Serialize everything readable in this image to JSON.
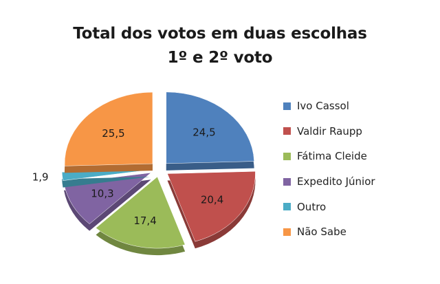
{
  "title": {
    "line1": "Total dos votos em duas escolhas",
    "line2": "1º e 2º voto"
  },
  "chart_data": {
    "type": "pie",
    "title": "Total dos votos em duas escolhas 1º e 2º voto",
    "categories": [
      "Ivo Cassol",
      "Valdir Raupp",
      "Fátima Cleide",
      "Expedito Júnior",
      "Outro",
      "Não Sabe"
    ],
    "values": [
      24.5,
      20.4,
      17.4,
      10.3,
      1.9,
      25.5
    ],
    "data_labels": [
      "24,5",
      "20,4",
      "17,4",
      "10,3",
      "1,9",
      "25,5"
    ],
    "colors": [
      "#4F81BD",
      "#C0504D",
      "#9BBB59",
      "#8064A2",
      "#4BACC6",
      "#F79646"
    ],
    "exploded": true,
    "legend_position": "right"
  }
}
